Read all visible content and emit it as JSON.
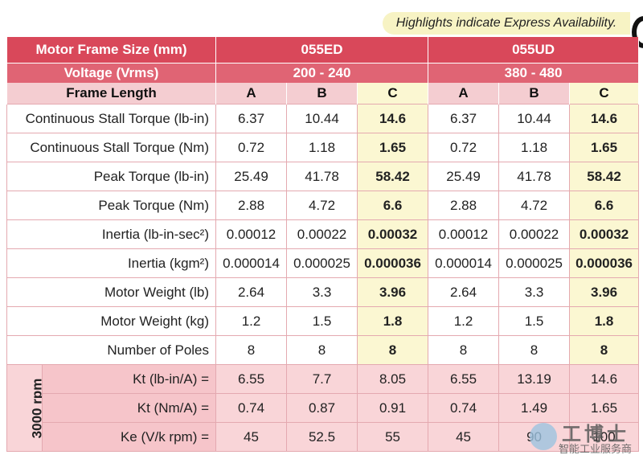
{
  "note": "Highlights indicate Express Availability.",
  "header": {
    "frame_size_label": "Motor Frame Size (mm)",
    "voltage_label": "Voltage (Vrms)",
    "frame_length_label": "Frame Length",
    "groups": [
      {
        "frame": "055ED",
        "voltage": "200 - 240"
      },
      {
        "frame": "055UD",
        "voltage": "380 - 480"
      }
    ],
    "lengths": [
      "A",
      "B",
      "C",
      "A",
      "B",
      "C"
    ]
  },
  "rows": [
    {
      "label": "Continuous Stall Torque (lb-in)",
      "values": [
        "6.37",
        "10.44",
        "14.6",
        "6.37",
        "10.44",
        "14.6"
      ]
    },
    {
      "label": "Continuous Stall Torque (Nm)",
      "values": [
        "0.72",
        "1.18",
        "1.65",
        "0.72",
        "1.18",
        "1.65"
      ]
    },
    {
      "label": "Peak Torque (lb-in)",
      "values": [
        "25.49",
        "41.78",
        "58.42",
        "25.49",
        "41.78",
        "58.42"
      ]
    },
    {
      "label": "Peak Torque (Nm)",
      "values": [
        "2.88",
        "4.72",
        "6.6",
        "2.88",
        "4.72",
        "6.6"
      ]
    },
    {
      "label": "Inertia (lb-in-sec²)",
      "values": [
        "0.00012",
        "0.00022",
        "0.00032",
        "0.00012",
        "0.00022",
        "0.00032"
      ]
    },
    {
      "label": "Inertia (kgm²)",
      "values": [
        "0.000014",
        "0.000025",
        "0.000036",
        "0.000014",
        "0.000025",
        "0.000036"
      ]
    },
    {
      "label": "Motor Weight (lb)",
      "values": [
        "2.64",
        "3.3",
        "3.96",
        "2.64",
        "3.3",
        "3.96"
      ]
    },
    {
      "label": "Motor Weight (kg)",
      "values": [
        "1.2",
        "1.5",
        "1.8",
        "1.2",
        "1.5",
        "1.8"
      ]
    },
    {
      "label": "Number of Poles",
      "values": [
        "8",
        "8",
        "8",
        "8",
        "8",
        "8"
      ]
    }
  ],
  "rpm_group": {
    "label": "3000 rpm",
    "rows": [
      {
        "label": "Kt (lb-in/A) =",
        "values": [
          "6.55",
          "7.7",
          "8.05",
          "6.55",
          "13.19",
          "14.6"
        ]
      },
      {
        "label": "Kt (Nm/A) =",
        "values": [
          "0.74",
          "0.87",
          "0.91",
          "0.74",
          "1.49",
          "1.65"
        ]
      },
      {
        "label": "Ke (V/k rpm) =",
        "values": [
          "45",
          "52.5",
          "55",
          "45",
          "90",
          "100"
        ]
      }
    ]
  },
  "watermark": {
    "big": "工博士",
    "small": "智能工业服务商"
  },
  "colors": {
    "header_red": "#d9485a",
    "subheader_pink": "#f4cdd1",
    "highlight_yellow": "#fbf7d2"
  }
}
